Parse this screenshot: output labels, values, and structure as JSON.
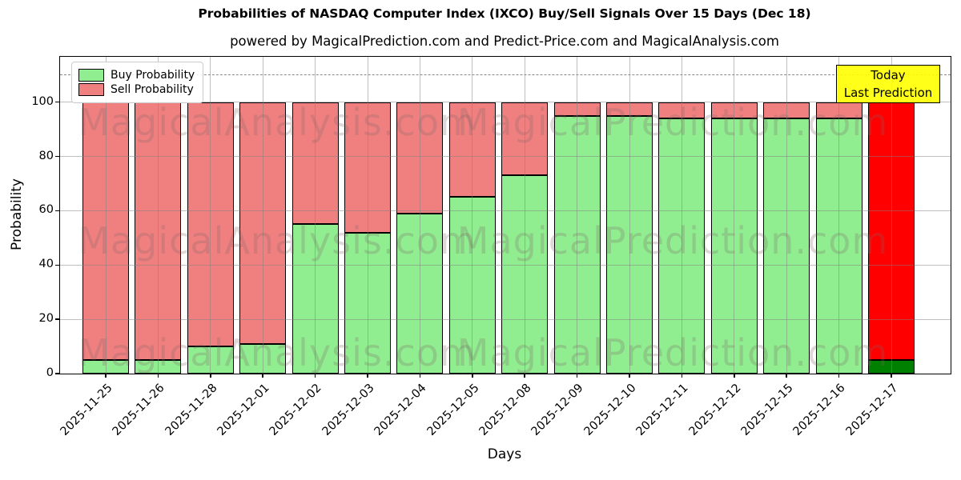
{
  "title": "Probabilities of NASDAQ Computer Index (IXCO) Buy/Sell Signals Over 15 Days (Dec 18)",
  "subtitle": "powered by MagicalPrediction.com and Predict-Price.com and MagicalAnalysis.com",
  "watermark": {
    "left": "MagicalAnalysis.com",
    "right": "MagicalPrediction.com"
  },
  "legend": {
    "items": [
      {
        "label": "Buy Probability",
        "color": "#90ee90"
      },
      {
        "label": "Sell Probability",
        "color": "#f08080"
      }
    ]
  },
  "annotation": {
    "line1": "Today",
    "line2": "Last Prediction",
    "bg_color": "#ffff00"
  },
  "axes": {
    "xlabel": "Days",
    "ylabel": "Probability",
    "yticks": [
      0,
      20,
      40,
      60,
      80,
      100
    ],
    "ylim": [
      0,
      116.7
    ],
    "dashed_hline_y": 110,
    "grid": true
  },
  "chart_data": {
    "type": "bar",
    "stacked": true,
    "title": "Probabilities of NASDAQ Computer Index (IXCO) Buy/Sell Signals Over 15 Days (Dec 18)",
    "xlabel": "Days",
    "ylabel": "Probability",
    "ylim": [
      0,
      116.7
    ],
    "legend_position": "upper left",
    "categories": [
      "2025-11-25",
      "2025-11-26",
      "2025-11-28",
      "2025-12-01",
      "2025-12-02",
      "2025-12-03",
      "2025-12-04",
      "2025-12-05",
      "2025-12-08",
      "2025-12-09",
      "2025-12-10",
      "2025-12-11",
      "2025-12-12",
      "2025-12-15",
      "2025-12-16",
      "2025-12-17"
    ],
    "series": [
      {
        "name": "Buy Probability",
        "color": "#90ee90",
        "values": [
          5,
          5,
          10,
          11,
          55,
          52,
          59,
          65,
          73,
          95,
          95,
          94,
          94,
          94,
          94,
          5
        ]
      },
      {
        "name": "Sell Probability",
        "color": "#f08080",
        "values": [
          95,
          95,
          90,
          89,
          45,
          48,
          41,
          35,
          27,
          5,
          5,
          6,
          6,
          6,
          6,
          95
        ]
      }
    ],
    "today_bar": {
      "category": "2025-12-17",
      "buy_color": "#008000",
      "sell_color": "#ff0000",
      "annotation": "Today Last Prediction"
    }
  }
}
